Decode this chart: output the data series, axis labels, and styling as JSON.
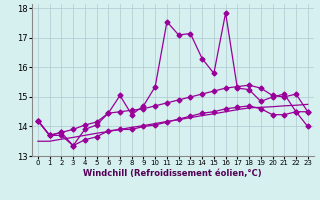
{
  "xlabel": "Windchill (Refroidissement éolien,°C)",
  "x": [
    0,
    1,
    2,
    3,
    4,
    5,
    6,
    7,
    8,
    9,
    10,
    11,
    12,
    13,
    14,
    15,
    16,
    17,
    18,
    19,
    20,
    21,
    22,
    23
  ],
  "y_main": [
    14.2,
    13.7,
    13.8,
    13.35,
    13.9,
    14.05,
    14.45,
    15.05,
    14.4,
    14.7,
    15.35,
    17.55,
    17.1,
    17.15,
    16.3,
    15.8,
    17.85,
    15.3,
    15.25,
    14.85,
    15.0,
    15.1,
    14.5,
    14.5
  ],
  "y_upper": [
    14.2,
    13.7,
    13.8,
    13.9,
    14.05,
    14.15,
    14.45,
    14.5,
    14.55,
    14.6,
    14.7,
    14.8,
    14.9,
    15.0,
    15.1,
    15.2,
    15.3,
    15.35,
    15.4,
    15.3,
    15.05,
    15.0,
    15.1,
    14.5
  ],
  "y_lower": [
    14.2,
    13.7,
    13.7,
    13.35,
    13.55,
    13.65,
    13.85,
    13.9,
    13.9,
    14.0,
    14.05,
    14.15,
    14.25,
    14.35,
    14.45,
    14.5,
    14.6,
    14.65,
    14.7,
    14.6,
    14.4,
    14.4,
    14.5,
    14.0
  ],
  "y_trend": [
    13.5,
    13.5,
    13.57,
    13.63,
    13.7,
    13.77,
    13.83,
    13.9,
    13.97,
    14.03,
    14.1,
    14.17,
    14.23,
    14.3,
    14.37,
    14.43,
    14.5,
    14.57,
    14.63,
    14.65,
    14.67,
    14.7,
    14.72,
    14.75
  ],
  "line_color": "#990099",
  "bg_color": "#d6f0f0",
  "grid_color": "#b0c8d0",
  "ylim": [
    13.0,
    18.15
  ],
  "xlim": [
    -0.5,
    23.5
  ],
  "yticks": [
    13,
    14,
    15,
    16,
    17,
    18
  ],
  "xticks": [
    0,
    1,
    2,
    3,
    4,
    5,
    6,
    7,
    8,
    9,
    10,
    11,
    12,
    13,
    14,
    15,
    16,
    17,
    18,
    19,
    20,
    21,
    22,
    23
  ],
  "marker": "D",
  "markersize": 2.5,
  "linewidth": 0.9
}
